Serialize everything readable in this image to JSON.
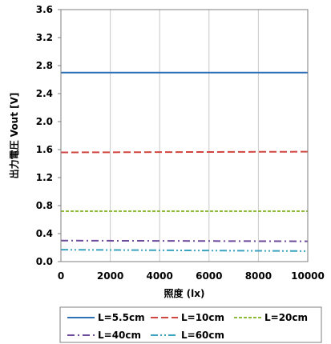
{
  "chart_data": {
    "type": "line",
    "xlabel": "照度 (lx)",
    "ylabel": "出力電圧 Vout [V]",
    "xlim": [
      0,
      10000
    ],
    "ylim": [
      0,
      3.6
    ],
    "xticks": [
      0,
      2000,
      4000,
      6000,
      8000,
      10000
    ],
    "yticks": [
      0.0,
      0.4,
      0.8,
      1.2,
      1.6,
      2.0,
      2.4,
      2.8,
      3.2,
      3.6
    ],
    "xtick_labels": [
      "0",
      "2000",
      "4000",
      "6000",
      "8000",
      "10000"
    ],
    "ytick_labels": [
      "0.0",
      "0.4",
      "0.8",
      "1.2",
      "1.6",
      "2.0",
      "2.4",
      "2.8",
      "3.2",
      "3.6"
    ],
    "grid": "vertical",
    "legend_position": "bottom",
    "series": [
      {
        "name": "L=5.5cm",
        "color": "#2e6fb5",
        "dash": "solid",
        "x": [
          0,
          10000
        ],
        "y": [
          2.7,
          2.7
        ]
      },
      {
        "name": "L=10cm",
        "color": "#d0453f",
        "dash": "dash",
        "x": [
          0,
          10000
        ],
        "y": [
          1.56,
          1.57
        ]
      },
      {
        "name": "L=20cm",
        "color": "#8fbb3c",
        "dash": "shortdash",
        "x": [
          0,
          10000
        ],
        "y": [
          0.72,
          0.72
        ]
      },
      {
        "name": "L=40cm",
        "color": "#6d4a9c",
        "dash": "dashdot",
        "x": [
          0,
          10000
        ],
        "y": [
          0.3,
          0.29
        ]
      },
      {
        "name": "L=60cm",
        "color": "#3ba3c0",
        "dash": "dashdotdot",
        "x": [
          0,
          10000
        ],
        "y": [
          0.17,
          0.15
        ]
      }
    ]
  }
}
